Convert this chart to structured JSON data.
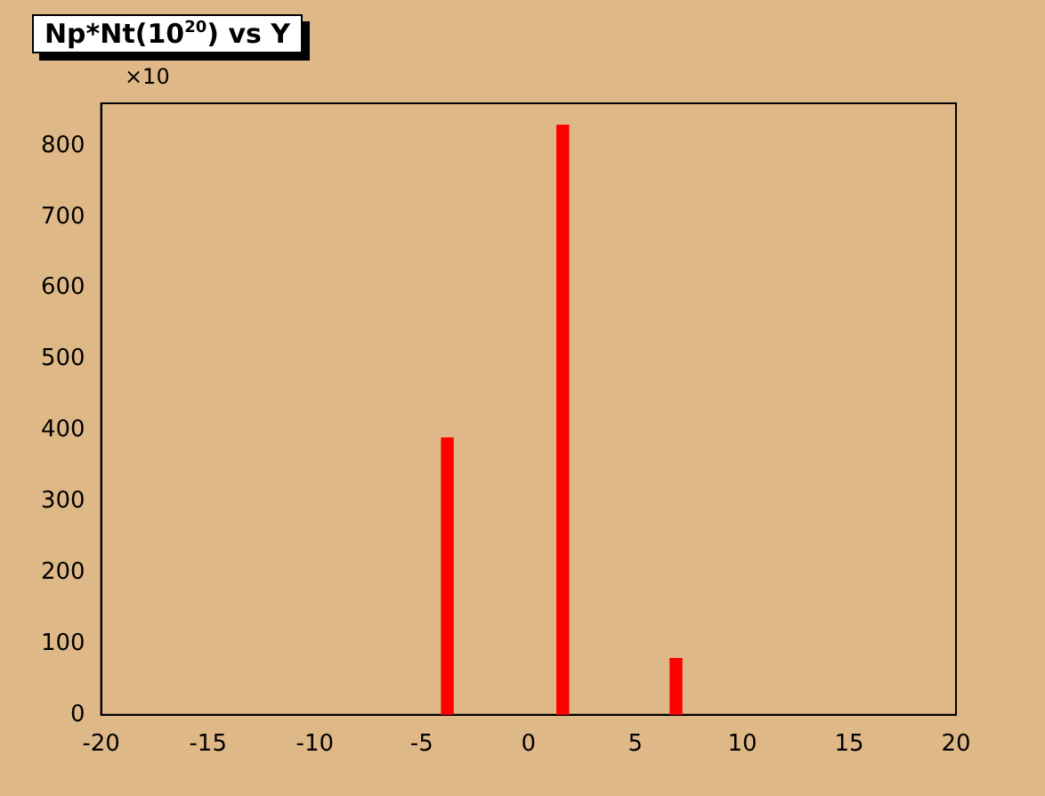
{
  "chart_data": {
    "type": "histogram",
    "title": "Np*Nt(10$^{20}$) vs Y",
    "bins": [
      -4.1,
      -3.5,
      1.3,
      1.9,
      6.6,
      7.2
    ],
    "values": [
      390,
      0,
      830,
      0,
      80
    ],
    "color": "#ff0000",
    "xlim": [
      -20,
      20
    ],
    "xticks": [
      -20,
      -15,
      -10,
      -5,
      0,
      5,
      10,
      15,
      20
    ],
    "ylim": [
      0,
      860
    ],
    "yticks": [
      0,
      100,
      200,
      300,
      400,
      500,
      600,
      700,
      800
    ],
    "annotations": [
      "×10"
    ],
    "grid": false,
    "legend": false
  }
}
